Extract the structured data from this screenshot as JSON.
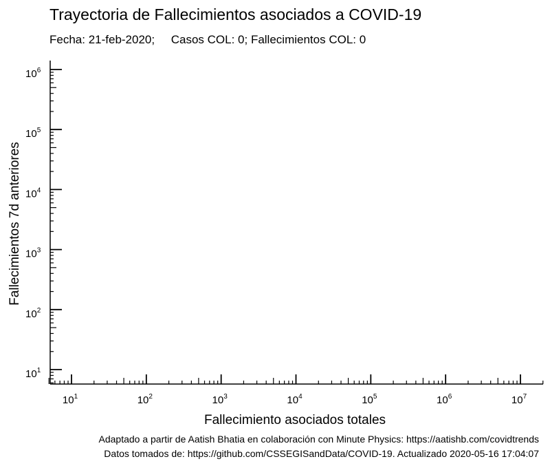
{
  "header": {
    "title": "Trayectoria de Fallecimientos asociados a COVID-19",
    "date_label": "Fecha: 21-feb-2020;",
    "stats_label": "Casos COL: 0; Fallecimientos COL: 0"
  },
  "footer": {
    "credit": "Adaptado a partir de Aatish Bhatia en colaboración con Minute Physics: https://aatishb.com/covidtrends",
    "source": "Datos tomados de: https://github.com/CSSEGISandData/COVID-19. Actualizado 2020-05-16 17:04:07"
  },
  "chart_data": {
    "type": "line",
    "title": "Trayectoria de Fallecimientos asociados a COVID-19",
    "xlabel": "Fallecimiento asociados totales",
    "ylabel": "Fallecimientos 7d anteriores",
    "xscale": "log",
    "yscale": "log",
    "xlim": [
      5,
      20000000
    ],
    "ylim": [
      6,
      1300000
    ],
    "x_ticks": [
      {
        "base": "10",
        "exp": "1",
        "value": 10
      },
      {
        "base": "10",
        "exp": "2",
        "value": 100
      },
      {
        "base": "10",
        "exp": "3",
        "value": 1000
      },
      {
        "base": "10",
        "exp": "4",
        "value": 10000
      },
      {
        "base": "10",
        "exp": "5",
        "value": 100000
      },
      {
        "base": "10",
        "exp": "6",
        "value": 1000000
      },
      {
        "base": "10",
        "exp": "7",
        "value": 10000000
      }
    ],
    "y_ticks": [
      {
        "base": "10",
        "exp": "1",
        "value": 10
      },
      {
        "base": "10",
        "exp": "2",
        "value": 100
      },
      {
        "base": "10",
        "exp": "3",
        "value": 1000
      },
      {
        "base": "10",
        "exp": "4",
        "value": 10000
      },
      {
        "base": "10",
        "exp": "5",
        "value": 100000
      },
      {
        "base": "10",
        "exp": "6",
        "value": 1000000
      }
    ],
    "series": [],
    "grid": false,
    "legend": "none"
  }
}
